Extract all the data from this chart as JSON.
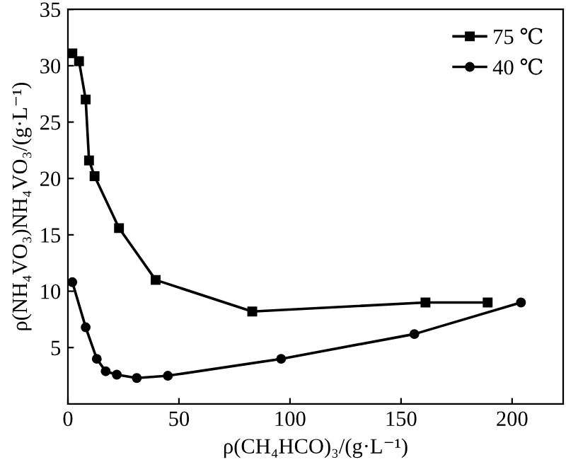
{
  "chart_data": {
    "type": "line",
    "xlabel": "ρ(CH₄HCO)₃/(g·L⁻¹)",
    "ylabel": "ρ(NH₄VO₃)NH₄VO₃/(g·L⁻¹)",
    "xlim": [
      0,
      223
    ],
    "ylim": [
      0,
      35
    ],
    "xticks": [
      0,
      50,
      100,
      150,
      200
    ],
    "yticks": [
      5,
      10,
      15,
      20,
      25,
      30,
      35
    ],
    "grid": false,
    "legend": "top right",
    "series": [
      {
        "name": "75 ℃",
        "color": "#000000",
        "marker": "square",
        "x": [
          2,
          5,
          8,
          9.5,
          12,
          23,
          39.5,
          83,
          161,
          189
        ],
        "values": [
          31.1,
          30.4,
          27.0,
          21.6,
          20.2,
          15.6,
          11.0,
          8.2,
          9.0,
          9.0
        ]
      },
      {
        "name": "40 ℃",
        "color": "#000000",
        "marker": "circle",
        "x": [
          2,
          8,
          13,
          17,
          22,
          31,
          45,
          96,
          156,
          204
        ],
        "values": [
          10.8,
          6.8,
          4.0,
          2.9,
          2.6,
          2.3,
          2.5,
          4.0,
          6.2,
          9.0
        ]
      }
    ]
  }
}
